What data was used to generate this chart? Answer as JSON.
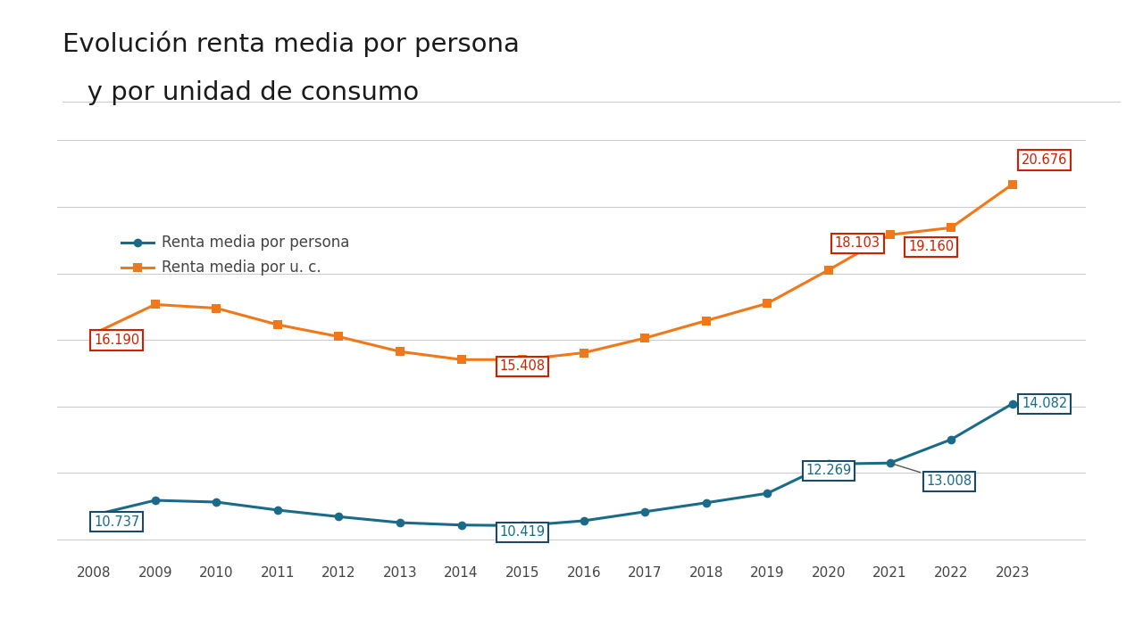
{
  "title_line1": "Evolución renta media por persona",
  "title_line2": "   y por unidad de consumo",
  "years": [
    2008,
    2009,
    2010,
    2011,
    2012,
    2013,
    2014,
    2015,
    2016,
    2017,
    2018,
    2019,
    2020,
    2021,
    2022,
    2023
  ],
  "persona": [
    10737,
    11179,
    11127,
    10887,
    10688,
    10509,
    10437,
    10419,
    10565,
    10837,
    11106,
    11390,
    12269,
    12300,
    13008,
    14082
  ],
  "uc": [
    16190,
    17064,
    16954,
    16457,
    16098,
    15648,
    15408,
    15408,
    15614,
    16055,
    16578,
    17098,
    18103,
    19160,
    19372,
    20676
  ],
  "persona_color": "#1a6b8a",
  "uc_color": "#f07818",
  "bg_color": "#ffffff",
  "grid_color": "#cccccc",
  "title_color": "#1a1a1a",
  "label_color": "#444444",
  "legend_persona": "Renta media por persona",
  "legend_uc": "Renta media por u. c.",
  "persona_box_edgecolor": "#1a4a6a",
  "uc_box_edgecolor": "#cc2200",
  "ylim": [
    9500,
    22500
  ],
  "xlim_left": 2007.4,
  "xlim_right": 2024.2
}
